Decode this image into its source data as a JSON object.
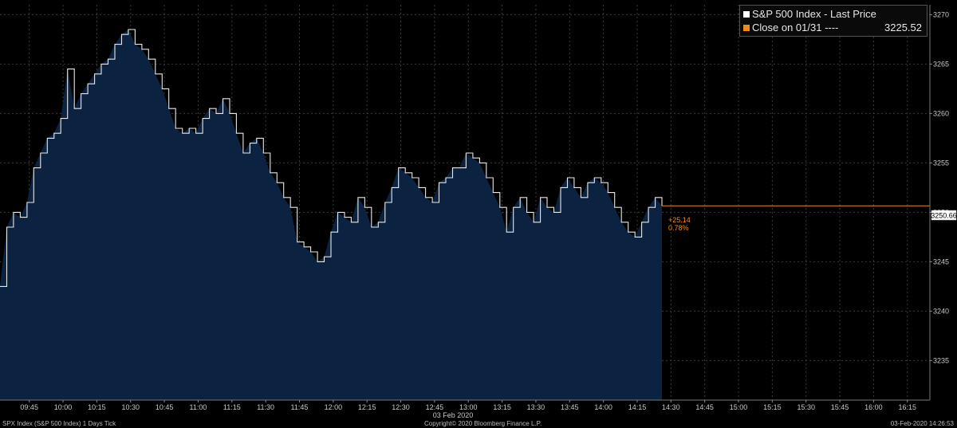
{
  "legend": {
    "series_label": "S&P 500 Index - Last Price",
    "ref_label": "Close on 01/31 ----",
    "ref_value": "3225.52",
    "series_color": "#ffffff",
    "ref_color": "#f08a1c"
  },
  "annotations": {
    "change": "+25.14",
    "change_pct": "0.78%",
    "last_price_tag": "3250.66"
  },
  "footer": {
    "left": "SPX Index (S&P 500 Index) 1 Days  Tick",
    "center": "Copyright© 2020 Bloomberg Finance L.P.",
    "right": "03-Feb-2020 14:26:53"
  },
  "chart_data": {
    "type": "area",
    "title": "",
    "xlabel": "03 Feb 2020",
    "ylabel": "",
    "ylim": [
      3231,
      3271
    ],
    "xlim": [
      "09:32",
      "16:25"
    ],
    "yticks": [
      3235,
      3240,
      3245,
      3250,
      3255,
      3260,
      3265,
      3270
    ],
    "xticks": [
      "09:45",
      "10:00",
      "10:15",
      "10:30",
      "10:45",
      "11:00",
      "11:15",
      "11:30",
      "11:45",
      "12:00",
      "12:15",
      "12:30",
      "12:45",
      "13:00",
      "13:15",
      "13:30",
      "13:45",
      "14:00",
      "14:15",
      "14:30",
      "14:45",
      "15:00",
      "15:15",
      "15:30",
      "15:45",
      "16:00",
      "16:15"
    ],
    "grid": true,
    "legend_position": "top-right",
    "last_price": 3250.66,
    "reference_close": 3225.52,
    "series": [
      {
        "name": "S&P 500 Index - Last Price",
        "x": [
          "09:32",
          "09:35",
          "09:38",
          "09:41",
          "09:44",
          "09:47",
          "09:50",
          "09:53",
          "09:56",
          "09:59",
          "10:02",
          "10:05",
          "10:08",
          "10:11",
          "10:14",
          "10:17",
          "10:20",
          "10:23",
          "10:26",
          "10:29",
          "10:32",
          "10:35",
          "10:38",
          "10:41",
          "10:44",
          "10:47",
          "10:50",
          "10:53",
          "10:56",
          "10:59",
          "11:02",
          "11:05",
          "11:08",
          "11:11",
          "11:14",
          "11:17",
          "11:20",
          "11:23",
          "11:26",
          "11:29",
          "11:32",
          "11:35",
          "11:38",
          "11:41",
          "11:44",
          "11:47",
          "11:50",
          "11:53",
          "11:56",
          "11:59",
          "12:02",
          "12:05",
          "12:08",
          "12:11",
          "12:14",
          "12:17",
          "12:20",
          "12:23",
          "12:26",
          "12:29",
          "12:32",
          "12:35",
          "12:38",
          "12:41",
          "12:44",
          "12:47",
          "12:50",
          "12:53",
          "12:56",
          "12:59",
          "13:02",
          "13:05",
          "13:08",
          "13:11",
          "13:14",
          "13:17",
          "13:20",
          "13:23",
          "13:26",
          "13:29",
          "13:32",
          "13:35",
          "13:38",
          "13:41",
          "13:44",
          "13:47",
          "13:50",
          "13:53",
          "13:56",
          "13:59",
          "14:02",
          "14:05",
          "14:08",
          "14:11",
          "14:14",
          "14:17",
          "14:20",
          "14:23",
          "14:26"
        ],
        "values": [
          3242.5,
          3248.5,
          3250.0,
          3249.5,
          3251.0,
          3254.5,
          3256.0,
          3257.5,
          3258.0,
          3259.5,
          3264.5,
          3260.5,
          3262.0,
          3263.0,
          3264.0,
          3265.0,
          3265.5,
          3267.0,
          3268.0,
          3268.5,
          3267.0,
          3266.5,
          3265.5,
          3264.0,
          3262.5,
          3260.5,
          3258.5,
          3258.0,
          3258.5,
          3258.0,
          3259.5,
          3260.5,
          3260.0,
          3261.5,
          3260.0,
          3258.0,
          3256.0,
          3257.0,
          3257.5,
          3256.0,
          3254.0,
          3253.0,
          3251.5,
          3250.5,
          3247.0,
          3246.5,
          3246.0,
          3245.0,
          3245.5,
          3248.0,
          3250.0,
          3249.5,
          3249.0,
          3251.5,
          3250.5,
          3248.5,
          3249.0,
          3251.0,
          3252.5,
          3254.5,
          3254.0,
          3253.5,
          3252.5,
          3251.5,
          3251.0,
          3253.0,
          3253.5,
          3254.5,
          3254.5,
          3256.0,
          3255.5,
          3255.0,
          3253.5,
          3252.0,
          3250.5,
          3248.0,
          3250.5,
          3251.5,
          3250.0,
          3249.0,
          3251.5,
          3250.5,
          3250.0,
          3252.5,
          3253.5,
          3252.5,
          3251.5,
          3253.0,
          3253.5,
          3253.0,
          3252.0,
          3250.5,
          3249.0,
          3248.0,
          3247.5,
          3249.0,
          3250.5,
          3251.5,
          3250.66
        ]
      }
    ]
  }
}
